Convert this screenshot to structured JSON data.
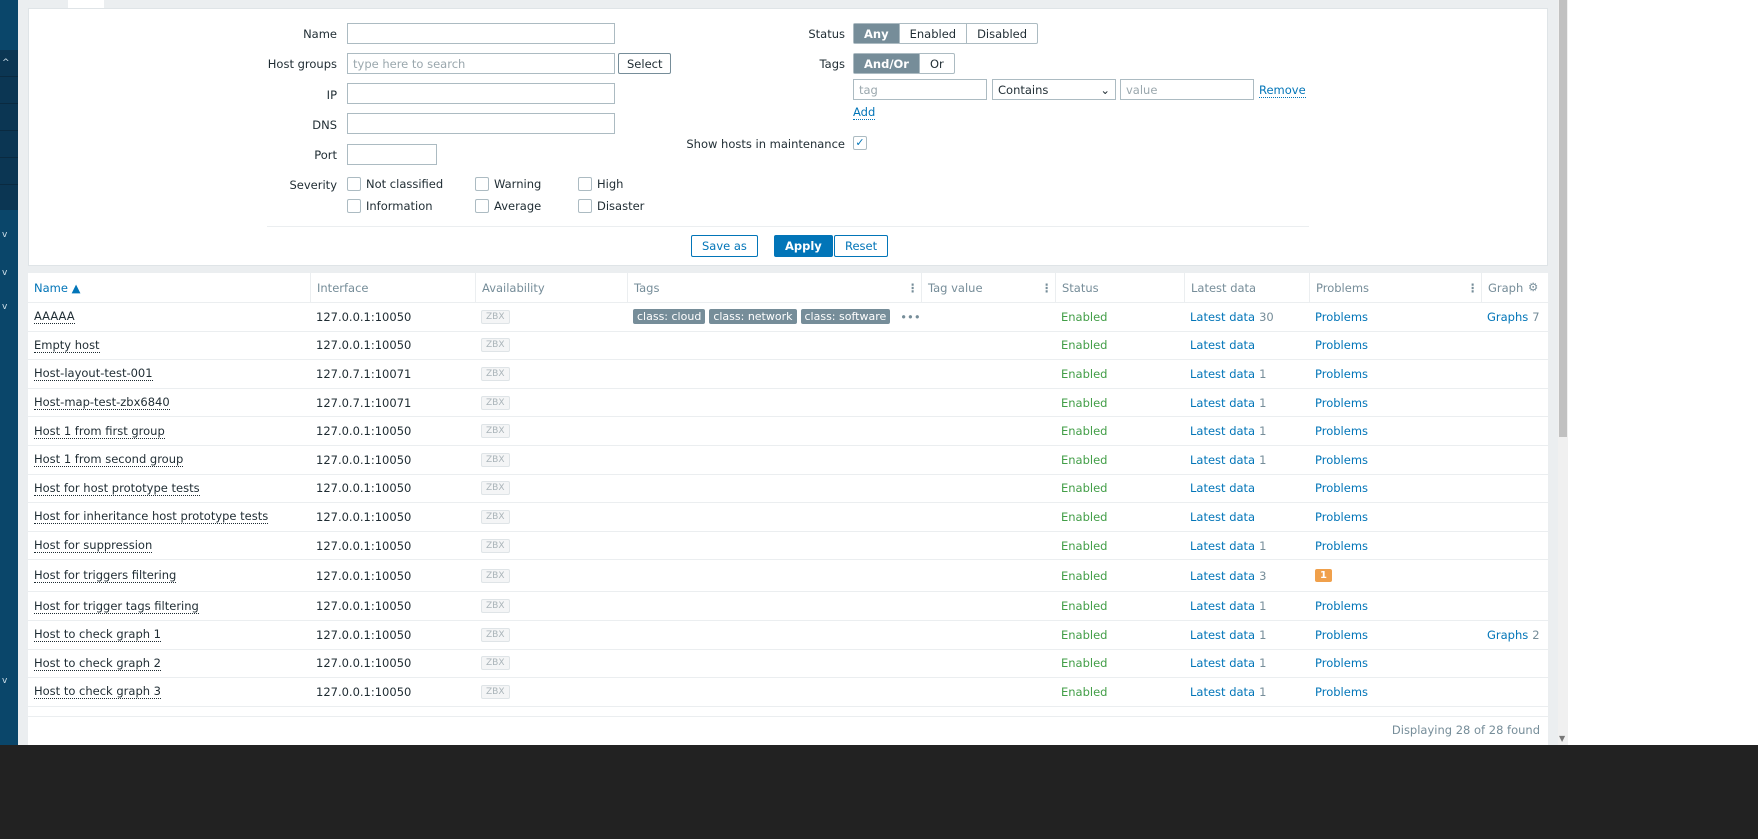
{
  "filter": {
    "name_label": "Name",
    "hostgroups_label": "Host groups",
    "hostgroups_placeholder": "type here to search",
    "select_label": "Select",
    "ip_label": "IP",
    "dns_label": "DNS",
    "port_label": "Port",
    "severity_label": "Severity",
    "severities": [
      "Not classified",
      "Warning",
      "High",
      "Information",
      "Average",
      "Disaster"
    ],
    "status_label": "Status",
    "status_options": [
      "Any",
      "Enabled",
      "Disabled"
    ],
    "tags_label": "Tags",
    "tags_options": [
      "And/Or",
      "Or"
    ],
    "tag_placeholder": "tag",
    "operator": "Contains",
    "value_placeholder": "value",
    "remove_label": "Remove",
    "add_label": "Add",
    "maintenance_label": "Show hosts in maintenance",
    "save_as": "Save as",
    "apply": "Apply",
    "reset": "Reset"
  },
  "table": {
    "headers": [
      "Name ▲",
      "Interface",
      "Availability",
      "Tags",
      "Tag value",
      "Status",
      "Latest data",
      "Problems",
      "Graph"
    ],
    "rows": [
      {
        "name": "AAAAA",
        "iface": "127.0.0.1:10050",
        "avail": "ZBX",
        "tags": [
          "class: cloud",
          "class: network",
          "class: software"
        ],
        "status": "Enabled",
        "latest": "Latest data",
        "latest_count": "30",
        "problems": "Problems",
        "graphs": "Graphs",
        "graphs_count": "7"
      },
      {
        "name": "Empty host",
        "iface": "127.0.0.1:10050",
        "avail": "ZBX",
        "status": "Enabled",
        "latest": "Latest data",
        "latest_count": "",
        "problems": "Problems"
      },
      {
        "name": "Host-layout-test-001",
        "iface": "127.0.7.1:10071",
        "avail": "ZBX",
        "status": "Enabled",
        "latest": "Latest data",
        "latest_count": "1",
        "problems": "Problems"
      },
      {
        "name": "Host-map-test-zbx6840",
        "iface": "127.0.7.1:10071",
        "avail": "ZBX",
        "status": "Enabled",
        "latest": "Latest data",
        "latest_count": "1",
        "problems": "Problems"
      },
      {
        "name": "Host 1 from first group",
        "iface": "127.0.0.1:10050",
        "avail": "ZBX",
        "status": "Enabled",
        "latest": "Latest data",
        "latest_count": "1",
        "problems": "Problems"
      },
      {
        "name": "Host 1 from second group",
        "iface": "127.0.0.1:10050",
        "avail": "ZBX",
        "status": "Enabled",
        "latest": "Latest data",
        "latest_count": "1",
        "problems": "Problems"
      },
      {
        "name": "Host for host prototype tests",
        "iface": "127.0.0.1:10050",
        "avail": "ZBX",
        "status": "Enabled",
        "latest": "Latest data",
        "latest_count": "",
        "problems": "Problems"
      },
      {
        "name": "Host for inheritance host prototype tests",
        "iface": "127.0.0.1:10050",
        "avail": "ZBX",
        "status": "Enabled",
        "latest": "Latest data",
        "latest_count": "",
        "problems": "Problems"
      },
      {
        "name": "Host for suppression",
        "iface": "127.0.0.1:10050",
        "avail": "ZBX",
        "status": "Enabled",
        "latest": "Latest data",
        "latest_count": "1",
        "problems": "Problems"
      },
      {
        "name": "Host for triggers filtering",
        "iface": "127.0.0.1:10050",
        "avail": "ZBX",
        "status": "Enabled",
        "latest": "Latest data",
        "latest_count": "3",
        "problems_badge": "1"
      },
      {
        "name": "Host for trigger tags filtering",
        "iface": "127.0.0.1:10050",
        "avail": "ZBX",
        "status": "Enabled",
        "latest": "Latest data",
        "latest_count": "1",
        "problems": "Problems"
      },
      {
        "name": "Host to check graph 1",
        "iface": "127.0.0.1:10050",
        "avail": "ZBX",
        "status": "Enabled",
        "latest": "Latest data",
        "latest_count": "1",
        "problems": "Problems",
        "graphs": "Graphs",
        "graphs_count": "2"
      },
      {
        "name": "Host to check graph 2",
        "iface": "127.0.0.1:10050",
        "avail": "ZBX",
        "status": "Enabled",
        "latest": "Latest data",
        "latest_count": "1",
        "problems": "Problems"
      },
      {
        "name": "Host to check graph 3",
        "iface": "127.0.0.1:10050",
        "avail": "ZBX",
        "status": "Enabled",
        "latest": "Latest data",
        "latest_count": "1",
        "problems": "Problems"
      }
    ],
    "footer": "Displaying 28 of 28 found"
  },
  "colors": {
    "accent": "#0275b8",
    "enabled": "#429e47",
    "sidebar": "#0a466a",
    "badge_average": "#f0a04b"
  }
}
